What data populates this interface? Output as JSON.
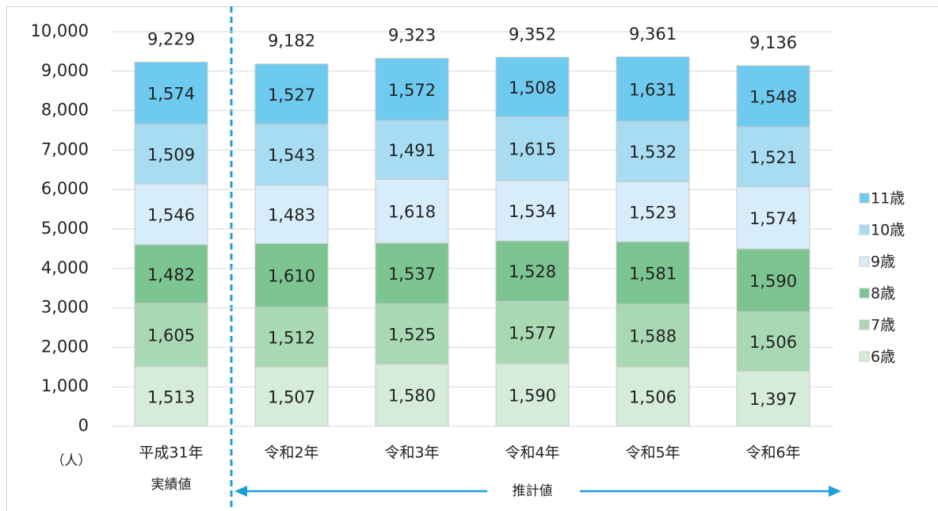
{
  "chart_data": {
    "type": "stacked_bar",
    "categories": [
      "平成31年",
      "令和2年",
      "令和3年",
      "令和4年",
      "令和5年",
      "令和6年"
    ],
    "series": [
      {
        "name": "6歳",
        "color": "#d5ecd9",
        "values": [
          1513,
          1507,
          1580,
          1590,
          1506,
          1397
        ],
        "value_labels": [
          "1,513",
          "1,507",
          "1,580",
          "1,590",
          "1,506",
          "1,397"
        ]
      },
      {
        "name": "7歳",
        "color": "#a9d9b3",
        "values": [
          1605,
          1512,
          1525,
          1577,
          1588,
          1506
        ],
        "value_labels": [
          "1,605",
          "1,512",
          "1,525",
          "1,577",
          "1,588",
          "1,506"
        ]
      },
      {
        "name": "8歳",
        "color": "#7cc490",
        "values": [
          1482,
          1610,
          1537,
          1528,
          1581,
          1590
        ],
        "value_labels": [
          "1,482",
          "1,610",
          "1,537",
          "1,528",
          "1,581",
          "1,590"
        ]
      },
      {
        "name": "9歳",
        "color": "#d7eefa",
        "values": [
          1546,
          1483,
          1618,
          1534,
          1523,
          1574
        ],
        "value_labels": [
          "1,546",
          "1,483",
          "1,618",
          "1,534",
          "1,523",
          "1,574"
        ]
      },
      {
        "name": "10歳",
        "color": "#a7dcf3",
        "values": [
          1509,
          1543,
          1491,
          1615,
          1532,
          1521
        ],
        "value_labels": [
          "1,509",
          "1,543",
          "1,491",
          "1,615",
          "1,532",
          "1,521"
        ]
      },
      {
        "name": "11歳",
        "color": "#6fcaef",
        "values": [
          1574,
          1527,
          1572,
          1508,
          1631,
          1548
        ],
        "value_labels": [
          "1,574",
          "1,527",
          "1,572",
          "1,508",
          "1,631",
          "1,548"
        ]
      }
    ],
    "totals": {
      "values": [
        9229,
        9182,
        9323,
        9352,
        9361,
        9136
      ],
      "value_labels": [
        "9,229",
        "9,182",
        "9,323",
        "9,352",
        "9,361",
        "9,136"
      ]
    },
    "ylim": [
      0,
      10000
    ],
    "yticks": [
      0,
      {
        "value": 1000,
        "label": "1,000"
      },
      {
        "value": 2000,
        "label": "2,000"
      },
      {
        "value": 3000,
        "label": "3,000"
      },
      {
        "value": 4000,
        "label": "4,000"
      },
      {
        "value": 5000,
        "label": "5,000"
      },
      {
        "value": 6000,
        "label": "6,000"
      },
      {
        "value": 7000,
        "label": "7,000"
      },
      {
        "value": 8000,
        "label": "8,000"
      },
      {
        "value": 9000,
        "label": "9,000"
      },
      {
        "value": 10000,
        "label": "10,000"
      }
    ],
    "y_unit": "（人）",
    "annotations": {
      "actual": "実績値",
      "estimate": "推計値"
    },
    "grid": true,
    "legend": "right"
  }
}
